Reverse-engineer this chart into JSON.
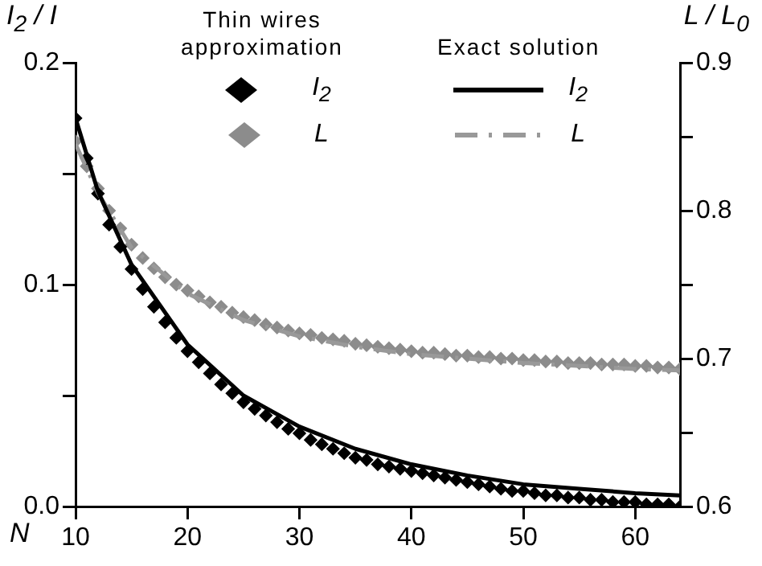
{
  "chart_data": {
    "type": "scatter",
    "xlabel": "N",
    "ylabel": "I$_{2}$ / I",
    "y2label": "L / L$_{0}$",
    "annotations": [
      "Thin wires approximation",
      "Exact solution"
    ],
    "x": [
      10,
      11,
      12,
      13,
      14,
      15,
      16,
      17,
      18,
      19,
      20,
      21,
      22,
      23,
      24,
      25,
      26,
      27,
      28,
      29,
      30,
      31,
      32,
      33,
      34,
      35,
      36,
      37,
      38,
      39,
      40,
      41,
      42,
      43,
      44,
      45,
      46,
      47,
      48,
      49,
      50,
      51,
      52,
      53,
      54,
      55,
      56,
      57,
      58,
      59,
      60,
      61,
      62,
      63,
      64
    ],
    "series": [
      {
        "name": "I$_{2}$",
        "marker": "diamond",
        "color": "#000000",
        "values": [
          0.175,
          0.157,
          0.141,
          0.127,
          0.117,
          0.107,
          0.098,
          0.09,
          0.083,
          0.076,
          0.07,
          0.065,
          0.06,
          0.055,
          0.051,
          0.047,
          0.044,
          0.041,
          0.038,
          0.035,
          0.033,
          0.03,
          0.028,
          0.026,
          0.024,
          0.022,
          0.021,
          0.019,
          0.018,
          0.017,
          0.016,
          0.015,
          0.014,
          0.013,
          0.012,
          0.011,
          0.01,
          0.009,
          0.008,
          0.007,
          0.007,
          0.006,
          0.005,
          0.005,
          0.004,
          0.004,
          0.003,
          0.003,
          0.002,
          0.002,
          0.002,
          0.001,
          0.001,
          0.001,
          0.0
        ]
      },
      {
        "name": "L",
        "marker": "diamond",
        "color": "#8c8c8c",
        "axis": "y2",
        "values": [
          0.847,
          0.83,
          0.815,
          0.8,
          0.788,
          0.777,
          0.768,
          0.761,
          0.755,
          0.75,
          0.746,
          0.742,
          0.738,
          0.735,
          0.731,
          0.728,
          0.726,
          0.723,
          0.721,
          0.719,
          0.717,
          0.716,
          0.714,
          0.713,
          0.712,
          0.71,
          0.709,
          0.708,
          0.707,
          0.706,
          0.705,
          0.704,
          0.704,
          0.703,
          0.702,
          0.702,
          0.701,
          0.701,
          0.7,
          0.7,
          0.699,
          0.699,
          0.698,
          0.698,
          0.697,
          0.697,
          0.697,
          0.696,
          0.696,
          0.696,
          0.695,
          0.695,
          0.694,
          0.694,
          0.693
        ]
      },
      {
        "name": "I$_{2}$",
        "type": "line",
        "marker": "none",
        "line_style": "solid",
        "color": "#000000",
        "x": [
          10,
          12,
          15,
          20,
          25,
          30,
          35,
          40,
          45,
          50,
          55,
          60,
          64
        ],
        "values": [
          0.175,
          0.142,
          0.109,
          0.073,
          0.05,
          0.036,
          0.026,
          0.019,
          0.014,
          0.01,
          0.008,
          0.006,
          0.005
        ]
      },
      {
        "name": "L",
        "type": "line",
        "marker": "none",
        "line_style": "dashed",
        "color": "#999999",
        "axis": "y2",
        "x": [
          10,
          12,
          15,
          20,
          25,
          30,
          35,
          40,
          50,
          60,
          64
        ],
        "values": [
          0.845,
          0.812,
          0.775,
          0.744,
          0.726,
          0.715,
          0.708,
          0.703,
          0.697,
          0.693,
          0.692
        ]
      }
    ],
    "xlim": [
      10,
      64
    ],
    "xticks": [
      10,
      20,
      30,
      40,
      50,
      60
    ],
    "ylim": [
      0,
      0.2
    ],
    "yticks": [
      {
        "value": 0,
        "label": "0.0"
      },
      {
        "value": 0.05,
        "label": null
      },
      0.1,
      {
        "value": 0.15,
        "label": null
      },
      0.2
    ],
    "y2lim": [
      0.6,
      0.9
    ],
    "y2ticks": [
      0.6,
      {
        "value": 0.65,
        "label": null
      },
      0.7,
      {
        "value": 0.75,
        "label": null
      },
      0.8,
      {
        "value": 0.85,
        "label": null
      },
      0.9
    ],
    "grid": false,
    "legend": "top"
  }
}
